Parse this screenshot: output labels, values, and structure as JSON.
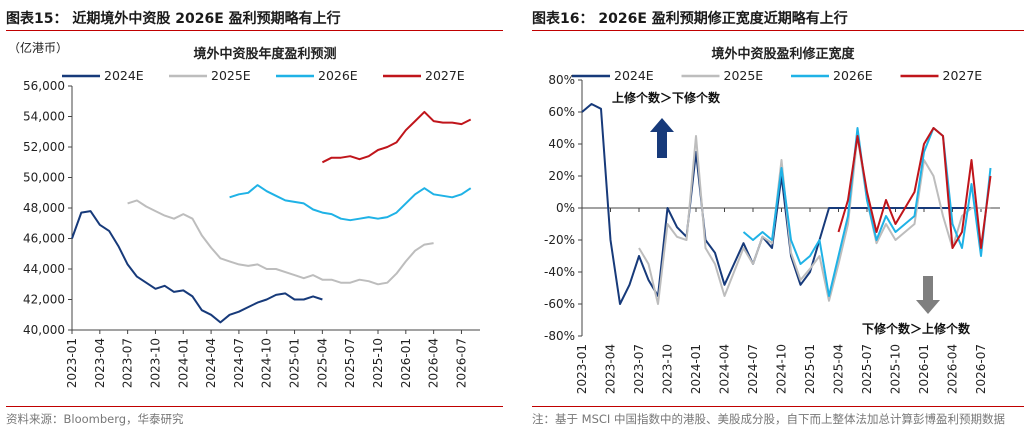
{
  "left_panel": {
    "figure_title": "图表15： 近期境外中资股 2026E 盈利预期略有上行",
    "source": "资料来源：Bloomberg，华泰研究"
  },
  "right_panel": {
    "figure_title": "图表16： 2026E 盈利预期修正宽度近期略有上行",
    "note": "注：基于 MSCI 中国指数中的港股、美股成分股，自下而上整体法加总计算彭博盈利预期数据"
  },
  "colors": {
    "s2024": "#173a7a",
    "s2025": "#bdbdbd",
    "s2026": "#1fb2e6",
    "s2027": "#c0151b",
    "accent": "#c00000",
    "arrow_up": "#173a7a",
    "arrow_down": "#7f7f7f"
  },
  "chart_data": [
    {
      "type": "line",
      "title": "境外中资股年度盈利预测",
      "unit_label": "（亿港币）",
      "x_ticks": [
        "2023-01",
        "2023-04",
        "2023-07",
        "2023-10",
        "2024-01",
        "2024-04",
        "2024-07",
        "2024-10",
        "2025-01",
        "2025-04",
        "2025-07",
        "2025-10",
        "2026-01",
        "2026-04",
        "2026-07"
      ],
      "y_ticks": [
        "40,000",
        "42,000",
        "44,000",
        "46,000",
        "48,000",
        "50,000",
        "52,000",
        "54,000",
        "56,000"
      ],
      "ylim": [
        40000,
        56000
      ],
      "xlim": [
        "2023-01",
        "2026-09"
      ],
      "legend": "top",
      "grid": false,
      "series": [
        {
          "name": "2024E",
          "color_key": "s2024",
          "points": [
            [
              "2023-01",
              46000
            ],
            [
              "2023-02",
              47700
            ],
            [
              "2023-03",
              47800
            ],
            [
              "2023-04",
              46900
            ],
            [
              "2023-05",
              46500
            ],
            [
              "2023-06",
              45500
            ],
            [
              "2023-07",
              44300
            ],
            [
              "2023-08",
              43500
            ],
            [
              "2023-09",
              43100
            ],
            [
              "2023-10",
              42700
            ],
            [
              "2023-11",
              42900
            ],
            [
              "2023-12",
              42500
            ],
            [
              "2024-01",
              42600
            ],
            [
              "2024-02",
              42200
            ],
            [
              "2024-03",
              41300
            ],
            [
              "2024-04",
              41000
            ],
            [
              "2024-05",
              40500
            ],
            [
              "2024-06",
              41000
            ],
            [
              "2024-07",
              41200
            ],
            [
              "2024-08",
              41500
            ],
            [
              "2024-09",
              41800
            ],
            [
              "2024-10",
              42000
            ],
            [
              "2024-11",
              42300
            ],
            [
              "2024-12",
              42400
            ],
            [
              "2025-01",
              42000
            ],
            [
              "2025-02",
              42000
            ],
            [
              "2025-03",
              42200
            ],
            [
              "2025-04",
              42000
            ]
          ]
        },
        {
          "name": "2025E",
          "color_key": "s2025",
          "points": [
            [
              "2023-07",
              48300
            ],
            [
              "2023-08",
              48500
            ],
            [
              "2023-09",
              48100
            ],
            [
              "2023-10",
              47800
            ],
            [
              "2023-11",
              47500
            ],
            [
              "2023-12",
              47300
            ],
            [
              "2024-01",
              47600
            ],
            [
              "2024-02",
              47300
            ],
            [
              "2024-03",
              46200
            ],
            [
              "2024-04",
              45400
            ],
            [
              "2024-05",
              44700
            ],
            [
              "2024-06",
              44500
            ],
            [
              "2024-07",
              44300
            ],
            [
              "2024-08",
              44200
            ],
            [
              "2024-09",
              44300
            ],
            [
              "2024-10",
              44000
            ],
            [
              "2024-11",
              44000
            ],
            [
              "2024-12",
              43800
            ],
            [
              "2025-01",
              43600
            ],
            [
              "2025-02",
              43400
            ],
            [
              "2025-03",
              43600
            ],
            [
              "2025-04",
              43300
            ],
            [
              "2025-05",
              43300
            ],
            [
              "2025-06",
              43100
            ],
            [
              "2025-07",
              43100
            ],
            [
              "2025-08",
              43300
            ],
            [
              "2025-09",
              43200
            ],
            [
              "2025-10",
              43000
            ],
            [
              "2025-11",
              43100
            ],
            [
              "2025-12",
              43700
            ],
            [
              "2026-01",
              44500
            ],
            [
              "2026-02",
              45200
            ],
            [
              "2026-03",
              45600
            ],
            [
              "2026-04",
              45700
            ]
          ]
        },
        {
          "name": "2026E",
          "color_key": "s2026",
          "points": [
            [
              "2024-06",
              48700
            ],
            [
              "2024-07",
              48900
            ],
            [
              "2024-08",
              49000
            ],
            [
              "2024-09",
              49500
            ],
            [
              "2024-10",
              49100
            ],
            [
              "2024-11",
              48800
            ],
            [
              "2024-12",
              48500
            ],
            [
              "2025-01",
              48400
            ],
            [
              "2025-02",
              48300
            ],
            [
              "2025-03",
              47900
            ],
            [
              "2025-04",
              47700
            ],
            [
              "2025-05",
              47600
            ],
            [
              "2025-06",
              47300
            ],
            [
              "2025-07",
              47200
            ],
            [
              "2025-08",
              47300
            ],
            [
              "2025-09",
              47400
            ],
            [
              "2025-10",
              47300
            ],
            [
              "2025-11",
              47400
            ],
            [
              "2025-12",
              47700
            ],
            [
              "2026-01",
              48300
            ],
            [
              "2026-02",
              48900
            ],
            [
              "2026-03",
              49300
            ],
            [
              "2026-04",
              48900
            ],
            [
              "2026-05",
              48800
            ],
            [
              "2026-06",
              48700
            ],
            [
              "2026-07",
              48900
            ],
            [
              "2026-08",
              49300
            ]
          ]
        },
        {
          "name": "2027E",
          "color_key": "s2027",
          "points": [
            [
              "2025-04",
              51000
            ],
            [
              "2025-05",
              51300
            ],
            [
              "2025-06",
              51300
            ],
            [
              "2025-07",
              51400
            ],
            [
              "2025-08",
              51200
            ],
            [
              "2025-09",
              51400
            ],
            [
              "2025-10",
              51800
            ],
            [
              "2025-11",
              52000
            ],
            [
              "2025-12",
              52300
            ],
            [
              "2026-01",
              53100
            ],
            [
              "2026-02",
              53700
            ],
            [
              "2026-03",
              54300
            ],
            [
              "2026-04",
              53700
            ],
            [
              "2026-05",
              53600
            ],
            [
              "2026-06",
              53600
            ],
            [
              "2026-07",
              53500
            ],
            [
              "2026-08",
              53800
            ]
          ]
        }
      ]
    },
    {
      "type": "line",
      "title": "境外中资股盈利修正宽度",
      "x_ticks": [
        "2023-01",
        "2023-04",
        "2023-07",
        "2023-10",
        "2024-01",
        "2024-04",
        "2024-07",
        "2024-10",
        "2025-01",
        "2025-04",
        "2025-07",
        "2025-10",
        "2026-01",
        "2026-04",
        "2026-07"
      ],
      "y_ticks": [
        "-80%",
        "-60%",
        "-40%",
        "-20%",
        "0%",
        "20%",
        "40%",
        "60%",
        "80%"
      ],
      "ylim": [
        -80,
        80
      ],
      "xlim": [
        "2023-01",
        "2026-09"
      ],
      "legend": "top",
      "grid": false,
      "annotations": [
        "上修个数＞下修个数",
        "下修个数＞上修个数"
      ],
      "series": [
        {
          "name": "2024E",
          "color_key": "s2024",
          "points": [
            [
              "2023-01",
              60
            ],
            [
              "2023-02",
              65
            ],
            [
              "2023-03",
              62
            ],
            [
              "2023-04",
              -20
            ],
            [
              "2023-05",
              -60
            ],
            [
              "2023-06",
              -48
            ],
            [
              "2023-07",
              -30
            ],
            [
              "2023-08",
              -45
            ],
            [
              "2023-09",
              -55
            ],
            [
              "2023-10",
              0
            ],
            [
              "2023-11",
              -12
            ],
            [
              "2023-12",
              -18
            ],
            [
              "2024-01",
              35
            ],
            [
              "2024-02",
              -20
            ],
            [
              "2024-03",
              -28
            ],
            [
              "2024-04",
              -48
            ],
            [
              "2024-05",
              -35
            ],
            [
              "2024-06",
              -22
            ],
            [
              "2024-07",
              -35
            ],
            [
              "2024-08",
              -18
            ],
            [
              "2024-09",
              -25
            ],
            [
              "2024-10",
              20
            ],
            [
              "2024-11",
              -30
            ],
            [
              "2024-12",
              -48
            ],
            [
              "2025-01",
              -40
            ],
            [
              "2025-02",
              -20
            ],
            [
              "2025-03",
              0
            ],
            [
              "2025-04",
              0
            ],
            [
              "2025-05",
              0
            ],
            [
              "2025-06",
              0
            ],
            [
              "2025-07",
              0
            ],
            [
              "2025-08",
              0
            ],
            [
              "2025-09",
              0
            ],
            [
              "2025-10",
              0
            ],
            [
              "2025-11",
              0
            ],
            [
              "2025-12",
              0
            ],
            [
              "2026-01",
              0
            ],
            [
              "2026-02",
              0
            ],
            [
              "2026-03",
              0
            ],
            [
              "2026-04",
              0
            ],
            [
              "2026-05",
              0
            ],
            [
              "2026-06",
              0
            ],
            [
              "2026-07",
              0
            ],
            [
              "2026-08",
              0
            ]
          ]
        },
        {
          "name": "2025E",
          "color_key": "s2025",
          "points": [
            [
              "2023-07",
              -25
            ],
            [
              "2023-08",
              -35
            ],
            [
              "2023-09",
              -60
            ],
            [
              "2023-10",
              -10
            ],
            [
              "2023-11",
              -18
            ],
            [
              "2023-12",
              -20
            ],
            [
              "2024-01",
              45
            ],
            [
              "2024-02",
              -25
            ],
            [
              "2024-03",
              -35
            ],
            [
              "2024-04",
              -55
            ],
            [
              "2024-05",
              -40
            ],
            [
              "2024-06",
              -25
            ],
            [
              "2024-07",
              -35
            ],
            [
              "2024-08",
              -18
            ],
            [
              "2024-09",
              -22
            ],
            [
              "2024-10",
              30
            ],
            [
              "2024-11",
              -28
            ],
            [
              "2024-12",
              -45
            ],
            [
              "2025-01",
              -38
            ],
            [
              "2025-02",
              -30
            ],
            [
              "2025-03",
              -58
            ],
            [
              "2025-04",
              -35
            ],
            [
              "2025-05",
              -10
            ],
            [
              "2025-06",
              45
            ],
            [
              "2025-07",
              5
            ],
            [
              "2025-08",
              -22
            ],
            [
              "2025-09",
              -10
            ],
            [
              "2025-10",
              -20
            ],
            [
              "2025-11",
              -15
            ],
            [
              "2025-12",
              -10
            ],
            [
              "2026-01",
              30
            ],
            [
              "2026-02",
              20
            ],
            [
              "2026-03",
              -5
            ],
            [
              "2026-04",
              -25
            ],
            [
              "2026-05",
              -5
            ],
            [
              "2026-06",
              0
            ],
            [
              "2026-07",
              0
            ],
            [
              "2026-08",
              0
            ]
          ]
        },
        {
          "name": "2026E",
          "color_key": "s2026",
          "points": [
            [
              "2024-06",
              -15
            ],
            [
              "2024-07",
              -20
            ],
            [
              "2024-08",
              -15
            ],
            [
              "2024-09",
              -20
            ],
            [
              "2024-10",
              25
            ],
            [
              "2024-11",
              -20
            ],
            [
              "2024-12",
              -35
            ],
            [
              "2025-01",
              -30
            ],
            [
              "2025-02",
              -20
            ],
            [
              "2025-03",
              -55
            ],
            [
              "2025-04",
              -30
            ],
            [
              "2025-05",
              -5
            ],
            [
              "2025-06",
              50
            ],
            [
              "2025-07",
              5
            ],
            [
              "2025-08",
              -20
            ],
            [
              "2025-09",
              -5
            ],
            [
              "2025-10",
              -15
            ],
            [
              "2025-11",
              -10
            ],
            [
              "2025-12",
              -5
            ],
            [
              "2026-01",
              35
            ],
            [
              "2026-02",
              50
            ],
            [
              "2026-03",
              45
            ],
            [
              "2026-04",
              -10
            ],
            [
              "2026-05",
              -25
            ],
            [
              "2026-06",
              15
            ],
            [
              "2026-07",
              -30
            ],
            [
              "2026-08",
              25
            ]
          ]
        },
        {
          "name": "2027E",
          "color_key": "s2027",
          "points": [
            [
              "2025-04",
              -15
            ],
            [
              "2025-05",
              5
            ],
            [
              "2025-06",
              45
            ],
            [
              "2025-07",
              10
            ],
            [
              "2025-08",
              -15
            ],
            [
              "2025-09",
              5
            ],
            [
              "2025-10",
              -10
            ],
            [
              "2025-11",
              0
            ],
            [
              "2025-12",
              10
            ],
            [
              "2026-01",
              40
            ],
            [
              "2026-02",
              50
            ],
            [
              "2026-03",
              45
            ],
            [
              "2026-04",
              -25
            ],
            [
              "2026-05",
              -15
            ],
            [
              "2026-06",
              30
            ],
            [
              "2026-07",
              -25
            ],
            [
              "2026-08",
              20
            ]
          ]
        }
      ]
    }
  ]
}
